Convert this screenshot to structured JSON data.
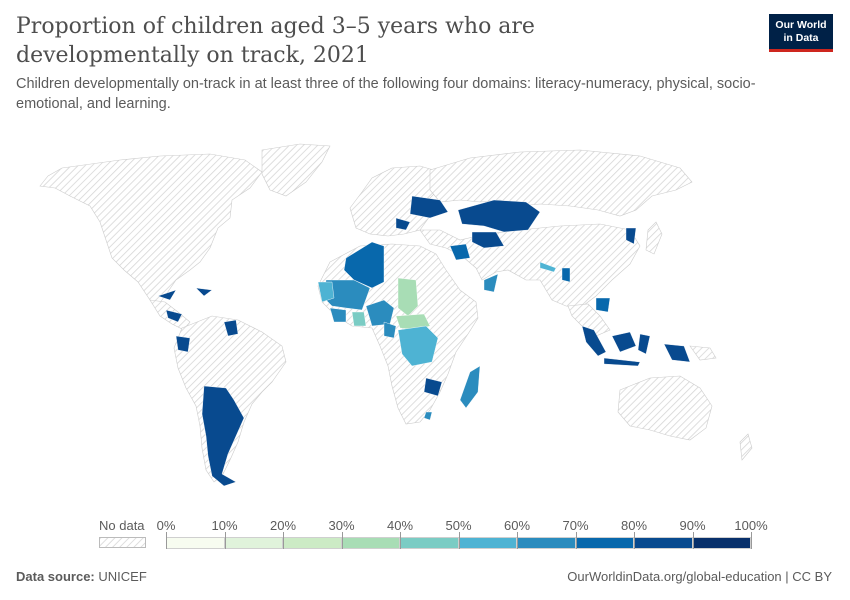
{
  "header": {
    "title": "Proportion of children aged 3–5 years who are developmentally on track, 2021",
    "subtitle": "Children developmentally on-track in at least three of the following four domains: literacy-numeracy, physical, socio-emotional, and learning.",
    "logo_line1": "Our World",
    "logo_line2": "in Data"
  },
  "legend": {
    "no_data_label": "No data",
    "bins": [
      {
        "from": 0,
        "to": 10,
        "color": "#f7fcf0"
      },
      {
        "from": 10,
        "to": 20,
        "color": "#e0f3db"
      },
      {
        "from": 20,
        "to": 30,
        "color": "#ccebc5"
      },
      {
        "from": 30,
        "to": 40,
        "color": "#a8ddb5"
      },
      {
        "from": 40,
        "to": 50,
        "color": "#7bccc4"
      },
      {
        "from": 50,
        "to": 60,
        "color": "#4eb3d3"
      },
      {
        "from": 60,
        "to": 70,
        "color": "#2b8cbe"
      },
      {
        "from": 70,
        "to": 80,
        "color": "#0868ac"
      },
      {
        "from": 80,
        "to": 90,
        "color": "#084a8f"
      },
      {
        "from": 90,
        "to": 100,
        "color": "#08306b"
      }
    ],
    "ticks": [
      "0%",
      "10%",
      "20%",
      "30%",
      "40%",
      "50%",
      "60%",
      "70%",
      "80%",
      "90%",
      "100%"
    ]
  },
  "footer": {
    "source_label": "Data source:",
    "source_value": "UNICEF",
    "url": "OurWorldinData.org/global-education | CC BY"
  },
  "colors": {
    "no_data_hatch": "#d9d9d9",
    "land_stroke": "#c9c9c9"
  }
}
